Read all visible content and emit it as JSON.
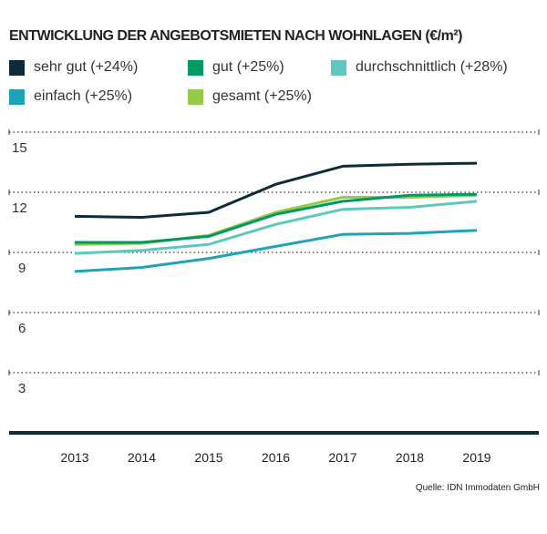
{
  "chart_data": {
    "type": "line",
    "title": "ENTWICKLUNG DER ANGEBOTSMIETEN NACH WOHNLAGEN (€/m²)",
    "x": [
      "2013",
      "2014",
      "2015",
      "2016",
      "2017",
      "2018",
      "2019"
    ],
    "yticks": [
      "3",
      "6",
      "9",
      "12",
      "15"
    ],
    "ylim": [
      0,
      15
    ],
    "grid": true,
    "legend_placement": "top",
    "series": [
      {
        "name": "sehr gut (+24%)",
        "color": "#0d2b38",
        "values": [
          10.8,
          10.75,
          11.0,
          12.4,
          13.3,
          13.4,
          13.45
        ]
      },
      {
        "name": "gut (+25%)",
        "color": "#009a60",
        "values": [
          9.5,
          9.5,
          9.8,
          10.9,
          11.55,
          11.85,
          11.9
        ]
      },
      {
        "name": "durchschnittlich (+28%)",
        "color": "#5ec7bf",
        "values": [
          8.95,
          9.1,
          9.4,
          10.4,
          11.15,
          11.25,
          11.55
        ]
      },
      {
        "name": "einfach (+25%)",
        "color": "#1fa3b8",
        "values": [
          8.05,
          8.25,
          8.7,
          9.3,
          9.9,
          9.95,
          10.1
        ]
      },
      {
        "name": "gesamt (+25%)",
        "color": "#97c94a",
        "values": [
          9.4,
          9.45,
          9.85,
          11.0,
          11.75,
          11.75,
          11.85
        ]
      }
    ],
    "source": "Quelle: IDN Immodaten GmbH"
  }
}
